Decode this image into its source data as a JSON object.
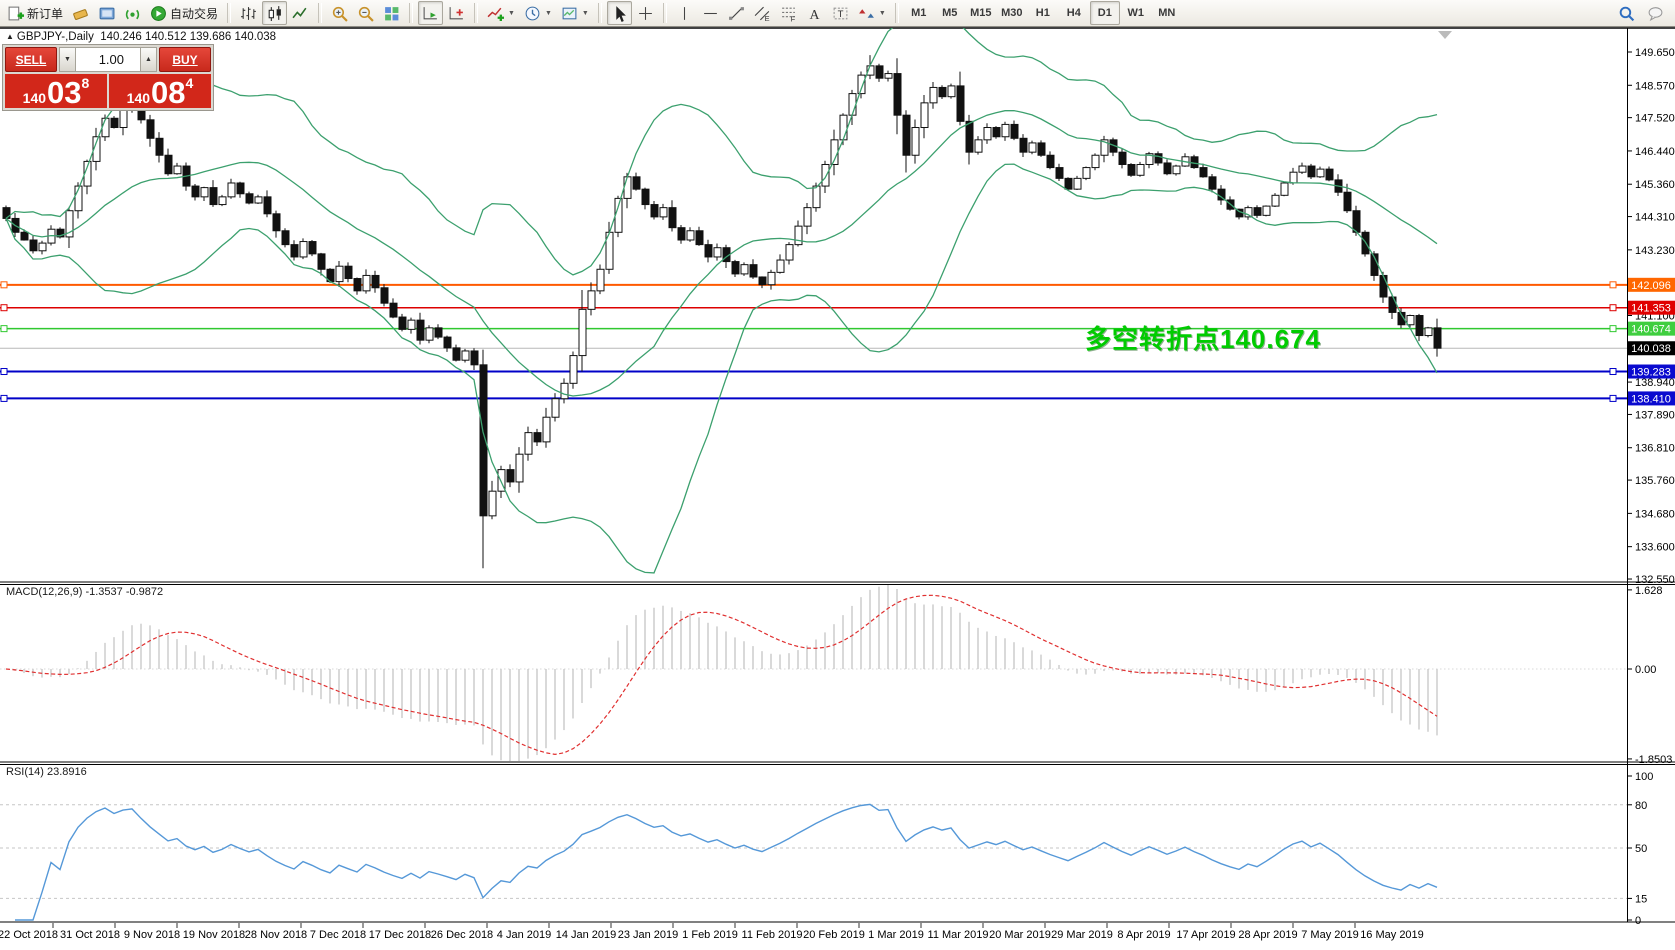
{
  "toolbar": {
    "groups": [
      {
        "items": [
          {
            "name": "new-order-button",
            "icon": "doc-plus",
            "label": "新订单"
          },
          {
            "name": "eraser-icon",
            "icon": "eraser"
          },
          {
            "name": "terminal-icon",
            "icon": "terminal"
          },
          {
            "name": "signal-icon",
            "icon": "signal"
          },
          {
            "name": "autotrading-button",
            "icon": "autotrade",
            "label": "自动交易"
          }
        ]
      },
      {
        "items": [
          {
            "name": "bar-chart-button",
            "icon": "bars"
          },
          {
            "name": "candlestick-button",
            "icon": "candles",
            "active": true
          },
          {
            "name": "line-chart-button",
            "icon": "line"
          }
        ]
      },
      {
        "items": [
          {
            "name": "zoom-in-button",
            "icon": "zoom-in"
          },
          {
            "name": "zoom-out-button",
            "icon": "zoom-out"
          },
          {
            "name": "tile-windows-button",
            "icon": "tile"
          }
        ]
      },
      {
        "items": [
          {
            "name": "autoscroll-button",
            "icon": "autoscroll",
            "active": true
          },
          {
            "name": "chart-shift-button",
            "icon": "shift"
          }
        ]
      },
      {
        "items": [
          {
            "name": "indicators-dropdown",
            "icon": "indicator",
            "dropdown": true
          },
          {
            "name": "periods-dropdown",
            "icon": "clock",
            "dropdown": true
          },
          {
            "name": "templates-dropdown",
            "icon": "template",
            "dropdown": true
          }
        ]
      },
      {
        "items": [
          {
            "name": "cursor-button",
            "icon": "cursor",
            "active": true
          },
          {
            "name": "crosshair-button",
            "icon": "crosshair"
          }
        ]
      },
      {
        "items": [
          {
            "name": "vertical-line-button",
            "icon": "vline"
          },
          {
            "name": "horizontal-line-button",
            "icon": "hline"
          },
          {
            "name": "trendline-button",
            "icon": "trend"
          },
          {
            "name": "channel-button",
            "icon": "channel"
          },
          {
            "name": "fibonacci-button",
            "icon": "fibo"
          },
          {
            "name": "text-button",
            "icon": "textA"
          },
          {
            "name": "label-button",
            "icon": "labelT"
          },
          {
            "name": "shapes-dropdown",
            "icon": "shapes",
            "dropdown": true
          }
        ]
      }
    ],
    "timeframes": [
      "M1",
      "M5",
      "M15",
      "M30",
      "H1",
      "H4",
      "D1",
      "W1",
      "MN"
    ],
    "active_timeframe": "D1",
    "right_icons": [
      {
        "name": "search-icon",
        "icon": "search"
      },
      {
        "name": "chat-icon",
        "icon": "chat"
      }
    ]
  },
  "symbol_header": {
    "marker": "▲",
    "symbol": "GBPJPY-,Daily",
    "ohlc": "140.246 140.512 139.686 140.038"
  },
  "trade_panel": {
    "sell_label": "SELL",
    "buy_label": "BUY",
    "volume": "1.00",
    "sell_price": {
      "prefix": "140",
      "big": "03",
      "sup": "8"
    },
    "buy_price": {
      "prefix": "140",
      "big": "08",
      "sup": "4"
    }
  },
  "annotation": {
    "text": "多空转折点140.674",
    "color": "#00CC00"
  },
  "chart_data": {
    "type": "candlestick",
    "symbol": "GBPJPY-",
    "timeframe": "Daily",
    "closes": [
      144.25,
      143.8,
      143.55,
      143.2,
      143.45,
      143.9,
      143.65,
      144.5,
      145.3,
      146.1,
      146.9,
      147.5,
      147.2,
      147.8,
      148.05,
      147.45,
      146.85,
      146.3,
      145.7,
      145.95,
      145.3,
      144.95,
      145.25,
      144.7,
      144.95,
      145.4,
      145.05,
      144.75,
      144.95,
      144.4,
      143.85,
      143.4,
      143.0,
      143.5,
      143.1,
      142.6,
      142.2,
      142.7,
      142.3,
      141.9,
      142.4,
      142.0,
      141.5,
      141.05,
      140.65,
      140.95,
      140.3,
      140.7,
      140.4,
      140.05,
      139.65,
      139.95,
      139.5,
      134.6,
      135.4,
      136.1,
      135.7,
      136.6,
      137.3,
      137.0,
      137.8,
      138.4,
      138.9,
      139.8,
      141.3,
      141.9,
      142.6,
      143.8,
      144.9,
      145.6,
      145.2,
      144.7,
      144.3,
      144.6,
      143.95,
      143.55,
      143.85,
      143.4,
      143.0,
      143.3,
      142.85,
      142.45,
      142.75,
      142.35,
      142.1,
      142.5,
      142.9,
      143.4,
      144.0,
      144.6,
      145.3,
      146.0,
      146.8,
      147.6,
      148.3,
      148.9,
      149.2,
      148.8,
      148.95,
      147.6,
      146.3,
      147.2,
      148.0,
      148.5,
      148.2,
      148.55,
      147.4,
      146.4,
      146.8,
      147.2,
      146.9,
      147.3,
      146.85,
      146.4,
      146.7,
      146.3,
      145.9,
      145.55,
      145.2,
      145.55,
      145.9,
      146.3,
      146.8,
      146.4,
      146.0,
      145.65,
      146.0,
      146.35,
      146.05,
      145.7,
      145.95,
      146.25,
      145.9,
      145.6,
      145.2,
      144.85,
      144.55,
      144.3,
      144.6,
      144.35,
      144.65,
      145.0,
      145.4,
      145.75,
      145.95,
      145.6,
      145.85,
      145.5,
      145.1,
      144.5,
      143.8,
      143.1,
      142.4,
      141.7,
      141.2,
      140.8,
      141.1,
      140.45,
      140.7,
      140.04
    ],
    "special_bars": {
      "53": {
        "low": 132.9
      },
      "96": {
        "high": 149.55
      }
    },
    "bollinger": {
      "period": 20,
      "deviation": 2,
      "color": "#3CA06E"
    },
    "price_axis": {
      "ticks": [
        "149.650",
        "148.570",
        "147.520",
        "146.440",
        "145.360",
        "144.310",
        "143.230",
        "141.100",
        "138.940",
        "137.890",
        "136.810",
        "135.760",
        "134.680",
        "133.600",
        "132.550"
      ],
      "top_price": 149.65,
      "bottom_price": 132.55
    },
    "hlines": [
      {
        "price": 142.096,
        "label": "142.096",
        "color": "#FF5A00",
        "tag_bg": "#FF6600",
        "width": 2,
        "handles": true
      },
      {
        "price": 141.353,
        "label": "141.353",
        "color": "#DD0000",
        "tag_bg": "#E00000",
        "width": 1.5,
        "handles": true
      },
      {
        "price": 140.674,
        "label": "140.674",
        "color": "#2FC82F",
        "tag_bg": "#3FCE3F",
        "width": 1.5,
        "handles": true
      },
      {
        "price": 140.038,
        "label": "140.038",
        "color": "#B8B8B8",
        "tag_bg": "#000000",
        "width": 1,
        "handles": false
      },
      {
        "price": 139.283,
        "label": "139.283",
        "color": "#0000C8",
        "tag_bg": "#0A0ACF",
        "width": 2,
        "handles": true
      },
      {
        "price": 138.41,
        "label": "138.410",
        "color": "#0000C8",
        "tag_bg": "#0A0ACF",
        "width": 2,
        "handles": true
      }
    ],
    "macd": {
      "label": "MACD(12,26,9) -1.3537 -0.9872",
      "fast": 12,
      "slow": 26,
      "signal": 9,
      "value": -1.3537,
      "signal_value": -0.9872,
      "ticks": [
        {
          "v": 1.628,
          "t": "1.628"
        },
        {
          "v": 0,
          "t": "0.00"
        },
        {
          "v": -1.8503,
          "t": "-1.8503"
        }
      ],
      "max": 1.628,
      "min": -1.8503,
      "hist_color": "#C9C9C9",
      "signal_color": "#E03030"
    },
    "rsi": {
      "label": "RSI(14) 23.8916",
      "period": 14,
      "value": 23.8916,
      "color": "#5598D8",
      "ticks": [
        {
          "v": 100,
          "t": "100"
        },
        {
          "v": 80,
          "t": "80"
        },
        {
          "v": 50,
          "t": "50"
        },
        {
          "v": 15,
          "t": "15"
        },
        {
          "v": 0,
          "t": "0"
        }
      ],
      "levels": [
        80,
        50,
        15
      ]
    },
    "dates": [
      "22 Oct 2018",
      "31 Oct 2018",
      "9 Nov 2018",
      "19 Nov 2018",
      "28 Nov 2018",
      "7 Dec 2018",
      "17 Dec 2018",
      "26 Dec 2018",
      "4 Jan 2019",
      "14 Jan 2019",
      "23 Jan 2019",
      "1 Feb 2019",
      "11 Feb 2019",
      "20 Feb 2019",
      "1 Mar 2019",
      "11 Mar 2019",
      "20 Mar 2019",
      "29 Mar 2019",
      "8 Apr 2019",
      "17 Apr 2019",
      "28 Apr 2019",
      "7 May 2019",
      "16 May 2019"
    ]
  }
}
